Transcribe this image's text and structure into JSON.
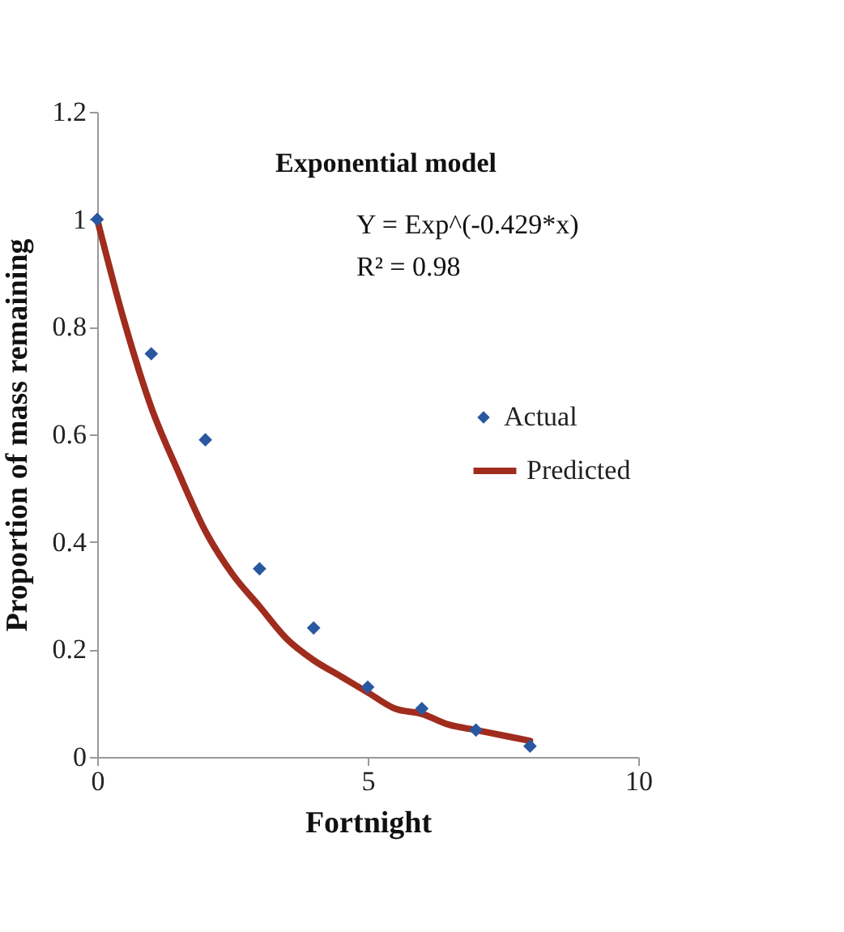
{
  "chart_data": {
    "type": "scatter",
    "xlabel": "Fortnight",
    "ylabel": "Proportion of mass remaining",
    "xlim": [
      0,
      10
    ],
    "xticks": [
      0,
      5,
      10
    ],
    "ylim": [
      0,
      1.2
    ],
    "yticks": [
      0,
      0.2,
      0.4,
      0.6,
      0.8,
      1,
      1.2
    ],
    "grid": false,
    "legend": "right",
    "annotations": [
      "Exponential model",
      "Y = Exp^(-0.429*x)",
      "R² = 0.98"
    ],
    "series": [
      {
        "name": "Actual",
        "type": "scatter",
        "marker": "diamond",
        "color": "#2a58a0",
        "x": [
          0,
          1,
          2,
          3,
          4,
          5,
          6,
          7,
          8
        ],
        "values": [
          1.0,
          0.75,
          0.59,
          0.35,
          0.24,
          0.13,
          0.09,
          0.05,
          0.02
        ]
      },
      {
        "name": "Predicted",
        "type": "line",
        "marker": "none",
        "color": "#a02c1e",
        "line_style": "solid",
        "x": [
          0,
          0.5,
          1,
          1.5,
          2,
          2.5,
          3,
          3.5,
          4,
          4.5,
          5,
          5.5,
          6,
          6.5,
          7,
          7.5,
          8
        ],
        "values": [
          1,
          0.81,
          0.65,
          0.53,
          0.42,
          0.34,
          0.28,
          0.22,
          0.18,
          0.15,
          0.12,
          0.09,
          0.08,
          0.06,
          0.05,
          0.04,
          0.03
        ]
      }
    ]
  }
}
